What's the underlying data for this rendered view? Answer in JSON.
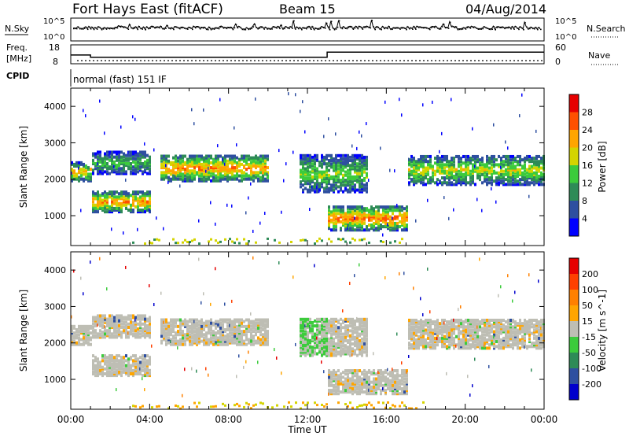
{
  "header": {
    "station": "Fort Hays East (fitACF)",
    "beam": "Beam 15",
    "date": "04/Aug/2014"
  },
  "noise_panel": {
    "left_label": "N.Sky",
    "right_label": "N.Search",
    "tick_top": "10^5",
    "tick_bottom": "10^0",
    "right_tick_top": "10^5",
    "right_tick_bottom": "10^0"
  },
  "freq_panel": {
    "left_label_top": "Freq.",
    "left_label_bottom": "[MHz]",
    "right_label": "Nave",
    "ticks_left": [
      "18",
      "8"
    ],
    "ticks_right": [
      "60",
      "0"
    ],
    "freq_steps": [
      {
        "from_hour": 0,
        "to_hour": 1,
        "mhz": 12
      },
      {
        "from_hour": 1,
        "to_hour": 13,
        "mhz": 10.5
      },
      {
        "from_hour": 13,
        "to_hour": 24,
        "mhz": 14
      }
    ],
    "nave_level": 15
  },
  "cpid": {
    "label": "CPID",
    "value": "normal (fast) 151 IF"
  },
  "chart_data": [
    {
      "type": "heatmap",
      "name": "power",
      "xlabel": "Time UT",
      "ylabel": "Slant Range [km]",
      "ylim": [
        180,
        4500
      ],
      "xlim": [
        0,
        24
      ],
      "yticks": [
        1000,
        2000,
        3000,
        4000
      ],
      "colorbar_label": "Power [dB]",
      "colorbar_ticks": [
        "28",
        "24",
        "20",
        "16",
        "12",
        "8",
        "4"
      ],
      "colors": [
        "#0000ff",
        "#2e4fa0",
        "#2e8b57",
        "#3ccb3c",
        "#d4d400",
        "#ffa500",
        "#ff5000",
        "#e60000"
      ],
      "bands": [
        {
          "from": 0,
          "to": 1,
          "lo": 2000,
          "hi": 2500,
          "peak": 22
        },
        {
          "from": 1,
          "to": 4,
          "lo": 1150,
          "hi": 1700,
          "peak": 24
        },
        {
          "from": 1,
          "to": 4,
          "lo": 2200,
          "hi": 2800,
          "peak": 14
        },
        {
          "from": 4.5,
          "to": 10,
          "lo": 2000,
          "hi": 2700,
          "peak": 24
        },
        {
          "from": 11.5,
          "to": 15,
          "lo": 1700,
          "hi": 2700,
          "peak": 16
        },
        {
          "from": 13,
          "to": 17,
          "lo": 650,
          "hi": 1300,
          "peak": 26
        },
        {
          "from": 17,
          "to": 24,
          "lo": 1900,
          "hi": 2700,
          "peak": 18
        }
      ]
    },
    {
      "type": "heatmap",
      "name": "velocity",
      "xlabel": "Time UT",
      "ylabel": "Slant Range [km]",
      "ylim": [
        180,
        4500
      ],
      "xlim": [
        0,
        24
      ],
      "yticks": [
        1000,
        2000,
        3000,
        4000
      ],
      "xticks": [
        "00:00",
        "04:00",
        "08:00",
        "12:00",
        "16:00",
        "20:00",
        "00:00"
      ],
      "colorbar_label": "Velocity [m s^-1]",
      "colorbar_ticks": [
        "200",
        "100",
        "50",
        "15",
        "-15",
        "-50",
        "-100",
        "-200"
      ],
      "colors": [
        "#0000cd",
        "#2e4fa0",
        "#2e8b57",
        "#3ccb3c",
        "#bebeb4",
        "#ffa500",
        "#ff8000",
        "#ff4000",
        "#e60000"
      ],
      "dominant": "-15 to 15"
    }
  ]
}
